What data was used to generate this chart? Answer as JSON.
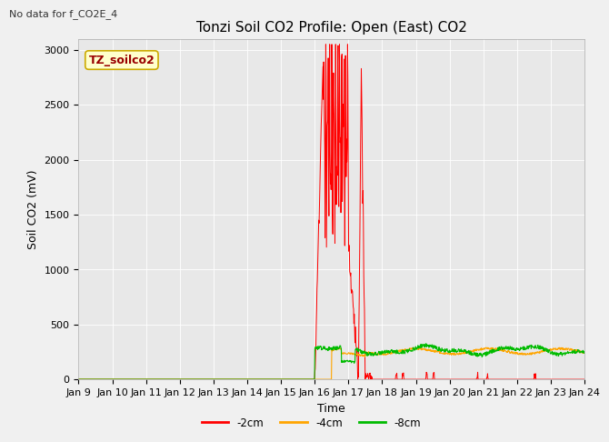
{
  "title": "Tonzi Soil CO2 Profile: Open (East) CO2",
  "no_data_text": "No data for f_CO2E_4",
  "xlabel": "Time",
  "ylabel": "Soil CO2 (mV)",
  "ylim": [
    0,
    3100
  ],
  "yticks": [
    0,
    500,
    1000,
    1500,
    2000,
    2500,
    3000
  ],
  "date_start": 9,
  "date_end": 24,
  "plot_bg": "#e8e8e8",
  "fig_bg": "#f0f0f0",
  "legend_label": "TZ_soilco2",
  "legend_box_facecolor": "#ffffcc",
  "legend_box_edgecolor": "#ccaa00",
  "series": {
    "red_2cm": {
      "color": "#ff0000",
      "label": "-2cm"
    },
    "orange_4cm": {
      "color": "#ffa500",
      "label": "-4cm"
    },
    "green_8cm": {
      "color": "#00bb00",
      "label": "-8cm"
    }
  },
  "title_fontsize": 11,
  "axis_label_fontsize": 9,
  "tick_fontsize": 8,
  "no_data_fontsize": 8,
  "legend_label_fontsize": 8.5
}
